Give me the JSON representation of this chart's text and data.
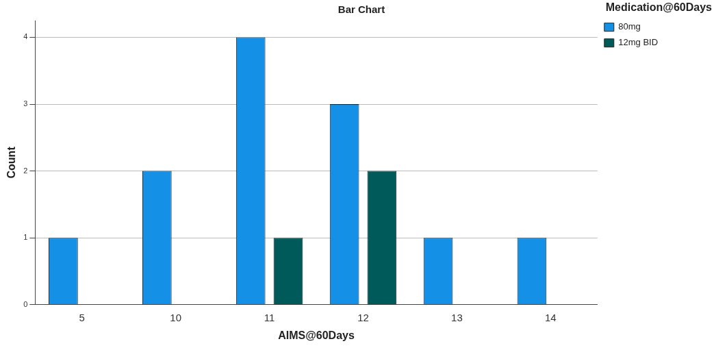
{
  "chart_data": {
    "type": "bar",
    "title": "Bar Chart",
    "xlabel": "AIMS@60Days",
    "ylabel": "Count",
    "legend_title": "Medication@60Days",
    "categories": [
      "5",
      "10",
      "11",
      "12",
      "13",
      "14"
    ],
    "series": [
      {
        "name": "80mg",
        "color": "#1490e6",
        "values": [
          1,
          2,
          4,
          3,
          1,
          1
        ]
      },
      {
        "name": "12mg BID",
        "color": "#005a5a",
        "values": [
          null,
          null,
          1,
          2,
          null,
          null
        ]
      }
    ],
    "ylim": [
      0,
      4.25
    ],
    "yticks": [
      0,
      1,
      2,
      3,
      4
    ],
    "grid": "y",
    "legend": "top right"
  }
}
